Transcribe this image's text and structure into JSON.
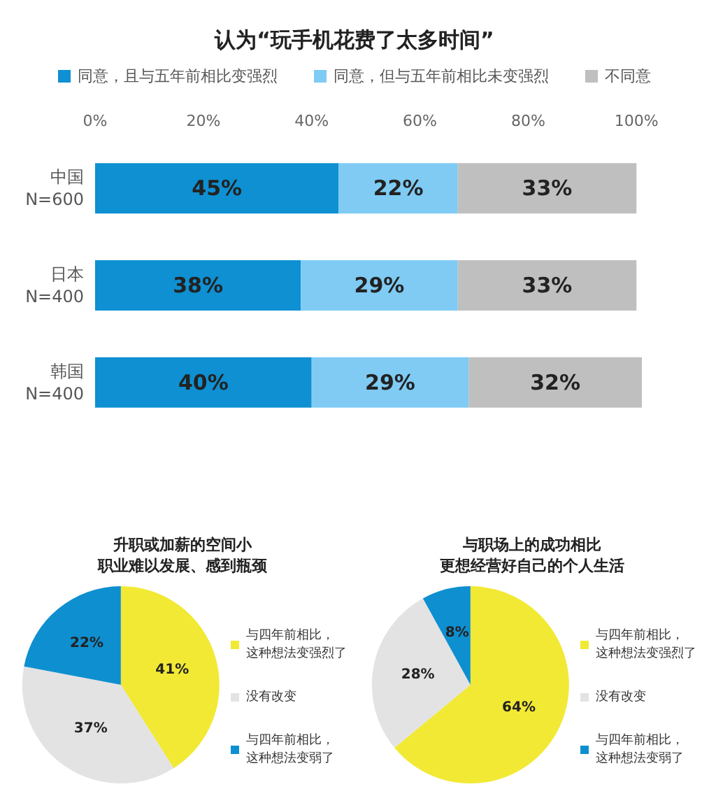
{
  "chart_data": [
    {
      "type": "bar",
      "title": "认为“玩手机花费了太多时间”",
      "orientation": "horizontal",
      "stacked": true,
      "categories": [
        "中国\nN=600",
        "日本\nN=400",
        "韩国\nN=400"
      ],
      "series": [
        {
          "name": "同意，且与五年前相比变强烈",
          "color": "#0e90d2",
          "values": [
            45,
            38,
            40
          ],
          "value_labels": [
            "45%",
            "38%",
            "40%"
          ]
        },
        {
          "name": "同意，但与五年前相比未变强烈",
          "color": "#7fcbf4",
          "values": [
            22,
            29,
            29
          ],
          "value_labels": [
            "22%",
            "29%",
            "29%"
          ]
        },
        {
          "name": "不同意",
          "color": "#bfbfbf",
          "values": [
            33,
            33,
            32
          ],
          "value_labels": [
            "33%",
            "33%",
            "32%"
          ]
        }
      ],
      "xlim": [
        0,
        101
      ],
      "xticks": [
        {
          "value": 0,
          "label": "0%"
        },
        {
          "value": 20,
          "label": "20%"
        },
        {
          "value": 40,
          "label": "40%"
        },
        {
          "value": 60,
          "label": "60%"
        },
        {
          "value": 80,
          "label": "80%"
        },
        {
          "value": 100,
          "label": "100%"
        }
      ],
      "legend": "top",
      "grid": false
    },
    {
      "type": "pie",
      "title": "升职或加薪的空间小职业难以发展、感到瓶颈",
      "categories": [
        "与四年前相比，这种想法变强烈了",
        "没有改变",
        "与四年前相比，这种想法变弱了"
      ],
      "values": [
        41,
        37,
        22
      ],
      "value_labels": [
        "41%",
        "37%",
        "22%"
      ],
      "colors": [
        "#f2e935",
        "#e3e3e3",
        "#0e8fd0"
      ],
      "legend": "right"
    },
    {
      "type": "pie",
      "title": "与职场上的成功相比更想经营好自己的个人生活",
      "categories": [
        "与四年前相比，这种想法变强烈了",
        "没有改变",
        "与四年前相比，这种想法变弱了"
      ],
      "values": [
        64,
        28,
        8
      ],
      "value_labels": [
        "64%",
        "28%",
        "8%"
      ],
      "colors": [
        "#f2e935",
        "#e3e3e3",
        "#0e8fd0"
      ],
      "legend": "right"
    }
  ]
}
